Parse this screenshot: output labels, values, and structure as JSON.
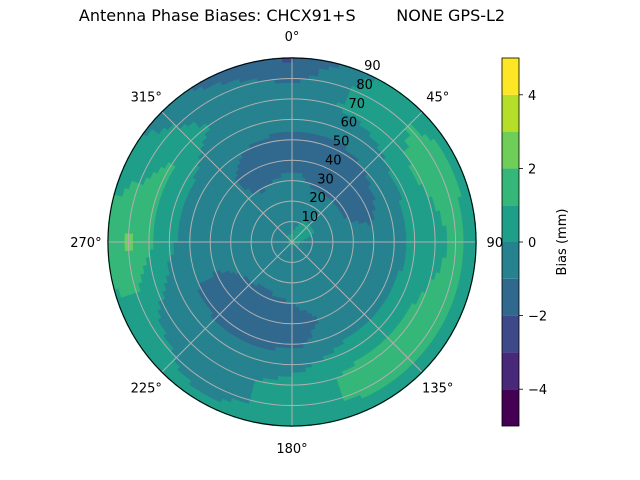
{
  "chart_data": {
    "type": "heatmap",
    "subtype": "polar filled contour",
    "title": "Antenna Phase Biases: CHCX91+S        NONE GPS-L2",
    "angular_axis": {
      "direction": "clockwise",
      "zero": "top",
      "tick_labels": [
        "0°",
        "45°",
        "90°",
        "135°",
        "180°",
        "225°",
        "270°",
        "315°"
      ]
    },
    "radial_axis": {
      "range": [
        0,
        90
      ],
      "tick_labels": [
        "10",
        "20",
        "30",
        "40",
        "50",
        "60",
        "70",
        "80",
        "90"
      ]
    },
    "grid": true,
    "colorbar": {
      "label": "Bias (mm)",
      "levels": [
        -5,
        -4,
        -3,
        -2,
        -1,
        0,
        1,
        2,
        3,
        4,
        5
      ],
      "tick_labels": [
        "−4",
        "−2",
        "0",
        "2",
        "4"
      ],
      "tick_values": [
        -4,
        -2,
        0,
        2,
        4
      ],
      "colormap": "viridis",
      "colors": [
        "#440154",
        "#482878",
        "#3e4989",
        "#31688e",
        "#26828e",
        "#1f9e89",
        "#35b779",
        "#6ece58",
        "#b5de2b",
        "#fde725"
      ]
    },
    "grid_azimuths": [
      0,
      30,
      60,
      90,
      120,
      150,
      180,
      210,
      240,
      270,
      300,
      330
    ],
    "grid_zeniths": [
      0,
      10,
      20,
      30,
      40,
      50,
      60,
      70,
      80,
      90
    ],
    "values": [
      [
        0.2,
        -0.3,
        -0.5,
        -0.8,
        -1.2,
        -1.2,
        -0.8,
        -0.5,
        -1.2,
        -2.2
      ],
      [
        0.3,
        0.1,
        -0.5,
        -1.2,
        -1.3,
        -1.2,
        -0.6,
        0.3,
        0.5,
        0.3
      ],
      [
        0.3,
        0.2,
        -0.5,
        -1.2,
        -1.3,
        -0.8,
        0.3,
        1.2,
        1.5,
        0.8
      ],
      [
        0.2,
        -0.3,
        -0.5,
        -0.6,
        -0.8,
        -0.5,
        0.3,
        0.6,
        1.2,
        0.5
      ],
      [
        0.2,
        -0.4,
        -0.5,
        -0.5,
        -0.5,
        -0.3,
        0.5,
        1.3,
        1.5,
        0.5
      ],
      [
        0.2,
        -0.5,
        -0.5,
        -0.7,
        -0.8,
        -0.5,
        0.6,
        1.4,
        1.5,
        0.4
      ],
      [
        0.2,
        -0.5,
        -0.6,
        -1.0,
        -1.3,
        -1.2,
        -0.4,
        0.3,
        0.4,
        0.5
      ],
      [
        0.2,
        -0.5,
        -0.7,
        -1.2,
        -1.4,
        -1.3,
        -0.6,
        -0.3,
        -0.4,
        0.2
      ],
      [
        0.2,
        -0.5,
        -0.6,
        -1.0,
        -1.2,
        -1.1,
        -0.6,
        -0.3,
        0.3,
        0.5
      ],
      [
        0.2,
        -0.5,
        -0.5,
        -0.5,
        -0.5,
        -0.4,
        0.2,
        1.2,
        2.3,
        1.5
      ],
      [
        0.2,
        -0.5,
        -0.6,
        -0.7,
        -0.6,
        -0.4,
        0.3,
        1.3,
        0.5,
        0.3
      ],
      [
        0.2,
        -0.4,
        -0.5,
        -1.1,
        -1.3,
        -1.0,
        -0.6,
        -0.3,
        -0.5,
        -1.2
      ]
    ]
  }
}
